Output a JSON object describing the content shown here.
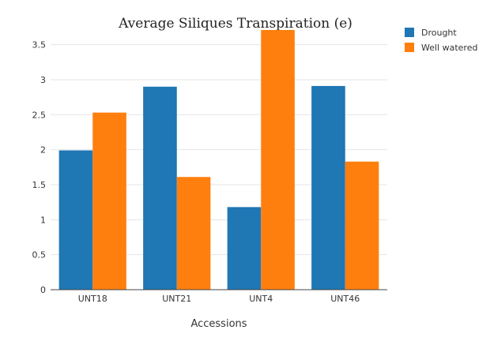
{
  "chart_data": {
    "type": "bar",
    "title": "Average Siliques Transpiration (e)",
    "xlabel": "Accessions",
    "ylabel": "",
    "categories": [
      "UNT18",
      "UNT21",
      "UNT4",
      "UNT46"
    ],
    "series": [
      {
        "name": "Drought",
        "color": "#1f77b4",
        "values": [
          1.99,
          2.9,
          1.18,
          2.91
        ]
      },
      {
        "name": "Well watered",
        "color": "#ff7f0e",
        "values": [
          2.53,
          1.61,
          3.71,
          1.83
        ]
      }
    ],
    "ylim": [
      0,
      3.8
    ],
    "yticks": [
      "0",
      "0.5",
      "1",
      "1.5",
      "2",
      "2.5",
      "3",
      "3.5"
    ],
    "grid": true,
    "legend_position": "top-right"
  }
}
